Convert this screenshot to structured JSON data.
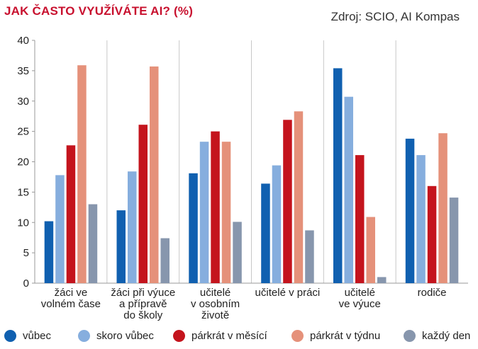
{
  "header": {
    "title": "JAK ČASTO VYUŽÍVÁTE AI? (%)",
    "source": "Zdroj: SCIO, AI Kompas"
  },
  "chart_data": {
    "type": "bar",
    "title": "JAK ČASTO VYUŽÍVÁTE AI? (%)",
    "xlabel": "",
    "ylabel": "",
    "ylim": [
      0,
      40
    ],
    "yticks": [
      0,
      5,
      10,
      15,
      20,
      25,
      30,
      35,
      40
    ],
    "grid": "vertical",
    "legend_position": "bottom",
    "categories": [
      [
        "žáci ve",
        "volném čase"
      ],
      [
        "žáci při výuce",
        "a přípravě",
        "do školy"
      ],
      [
        "učitelé",
        "v osobním",
        "životě"
      ],
      [
        "učitelé v práci"
      ],
      [
        "učitelé",
        "ve výuce"
      ],
      [
        "rodiče"
      ]
    ],
    "series": [
      {
        "name": "vůbec",
        "color": "#1060b0",
        "values": [
          10.2,
          12.0,
          18.1,
          16.4,
          35.4,
          23.8
        ]
      },
      {
        "name": "skoro vůbec",
        "color": "#86aede",
        "values": [
          17.8,
          18.4,
          23.3,
          19.4,
          30.7,
          21.1
        ]
      },
      {
        "name": "párkrát v měsící",
        "color": "#c4141d",
        "values": [
          22.7,
          26.1,
          25.0,
          26.9,
          21.1,
          16.0
        ]
      },
      {
        "name": "párkrát v týdnu",
        "color": "#e5917a",
        "values": [
          35.9,
          35.7,
          23.3,
          28.3,
          10.9,
          24.7
        ]
      },
      {
        "name": "každý den",
        "color": "#8796ad",
        "values": [
          13.0,
          7.4,
          10.1,
          8.7,
          1.0,
          14.1
        ]
      }
    ]
  }
}
